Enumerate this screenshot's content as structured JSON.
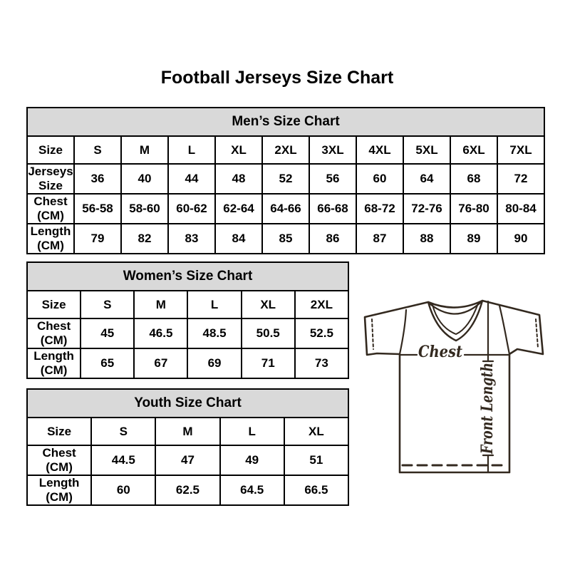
{
  "page": {
    "title": "Football Jerseys Size Chart"
  },
  "colors": {
    "background": "#ffffff",
    "table_header_bg": "#d9d9d9",
    "table_border": "#000000",
    "text": "#000000",
    "jersey_line": "#33291f"
  },
  "tables": {
    "men": {
      "header": "Men’s Size Chart",
      "rows": [
        [
          "Size",
          "S",
          "M",
          "L",
          "XL",
          "2XL",
          "3XL",
          "4XL",
          "5XL",
          "6XL",
          "7XL"
        ],
        [
          "Jerseys Size",
          "36",
          "40",
          "44",
          "48",
          "52",
          "56",
          "60",
          "64",
          "68",
          "72"
        ],
        [
          "Chest (CM)",
          "56-58",
          "58-60",
          "60-62",
          "62-64",
          "64-66",
          "66-68",
          "68-72",
          "72-76",
          "76-80",
          "80-84"
        ],
        [
          "Length (CM)",
          "79",
          "82",
          "83",
          "84",
          "85",
          "86",
          "87",
          "88",
          "89",
          "90"
        ]
      ]
    },
    "women": {
      "header": "Women’s Size Chart",
      "rows": [
        [
          "Size",
          "S",
          "M",
          "L",
          "XL",
          "2XL"
        ],
        [
          "Chest (CM)",
          "45",
          "46.5",
          "48.5",
          "50.5",
          "52.5"
        ],
        [
          "Length (CM)",
          "65",
          "67",
          "69",
          "71",
          "73"
        ]
      ]
    },
    "youth": {
      "header": "Youth Size Chart",
      "rows": [
        [
          "Size",
          "S",
          "M",
          "L",
          "XL"
        ],
        [
          "Chest (CM)",
          "44.5",
          "47",
          "49",
          "51"
        ],
        [
          "Length (CM)",
          "60",
          "62.5",
          "64.5",
          "66.5"
        ]
      ]
    }
  },
  "diagram": {
    "chest_label": "Chest",
    "front_length_label": "Front Length"
  }
}
